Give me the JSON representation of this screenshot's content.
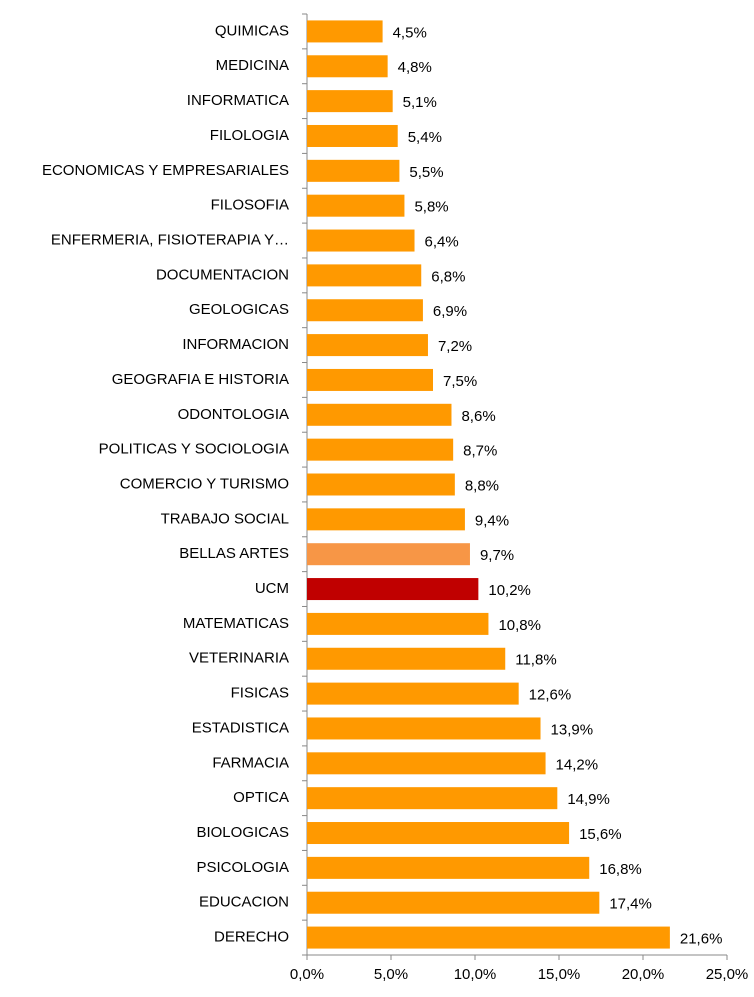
{
  "chart_data": {
    "type": "bar",
    "orientation": "horizontal",
    "categories": [
      "QUIMICAS",
      "MEDICINA",
      "INFORMATICA",
      "FILOLOGIA",
      "ECONOMICAS Y EMPRESARIALES",
      "FILOSOFIA",
      "ENFERMERIA, FISIOTERAPIA Y…",
      "DOCUMENTACION",
      "GEOLOGICAS",
      "INFORMACION",
      "GEOGRAFIA E HISTORIA",
      "ODONTOLOGIA",
      "POLITICAS Y SOCIOLOGIA",
      "COMERCIO Y TURISMO",
      "TRABAJO SOCIAL",
      "BELLAS ARTES",
      "UCM",
      "MATEMATICAS",
      "VETERINARIA",
      "FISICAS",
      "ESTADISTICA",
      "FARMACIA",
      "OPTICA",
      "BIOLOGICAS",
      "PSICOLOGIA",
      "EDUCACION",
      "DERECHO"
    ],
    "values": [
      4.5,
      4.8,
      5.1,
      5.4,
      5.5,
      5.8,
      6.4,
      6.8,
      6.9,
      7.2,
      7.5,
      8.6,
      8.7,
      8.8,
      9.4,
      9.7,
      10.2,
      10.8,
      11.8,
      12.6,
      13.9,
      14.2,
      14.9,
      15.6,
      16.8,
      17.4,
      21.6
    ],
    "value_labels": [
      "4,5%",
      "4,8%",
      "5,1%",
      "5,4%",
      "5,5%",
      "5,8%",
      "6,4%",
      "6,8%",
      "6,9%",
      "7,2%",
      "7,5%",
      "8,6%",
      "8,7%",
      "8,8%",
      "9,4%",
      "9,7%",
      "10,2%",
      "10,8%",
      "11,8%",
      "12,6%",
      "13,9%",
      "14,2%",
      "14,9%",
      "15,6%",
      "16,8%",
      "17,4%",
      "21,6%"
    ],
    "color": "#ff9900",
    "colors": [
      "#ff9900",
      "#ff9900",
      "#ff9900",
      "#ff9900",
      "#ff9900",
      "#ff9900",
      "#ff9900",
      "#ff9900",
      "#ff9900",
      "#ff9900",
      "#ff9900",
      "#ff9900",
      "#ff9900",
      "#ff9900",
      "#ff9900",
      "#f79646",
      "#c00000",
      "#ff9900",
      "#ff9900",
      "#ff9900",
      "#ff9900",
      "#ff9900",
      "#ff9900",
      "#ff9900",
      "#ff9900",
      "#ff9900",
      "#ff9900"
    ],
    "xlim": [
      0,
      25
    ],
    "xticks": [
      {
        "value": 0,
        "label": "0,0%"
      },
      {
        "value": 5,
        "label": "5,0%"
      },
      {
        "value": 10,
        "label": "10,0%"
      },
      {
        "value": 15,
        "label": "15,0%"
      },
      {
        "value": 20,
        "label": "20,0%"
      },
      {
        "value": 25,
        "label": "25,0%"
      }
    ],
    "grid": false
  }
}
